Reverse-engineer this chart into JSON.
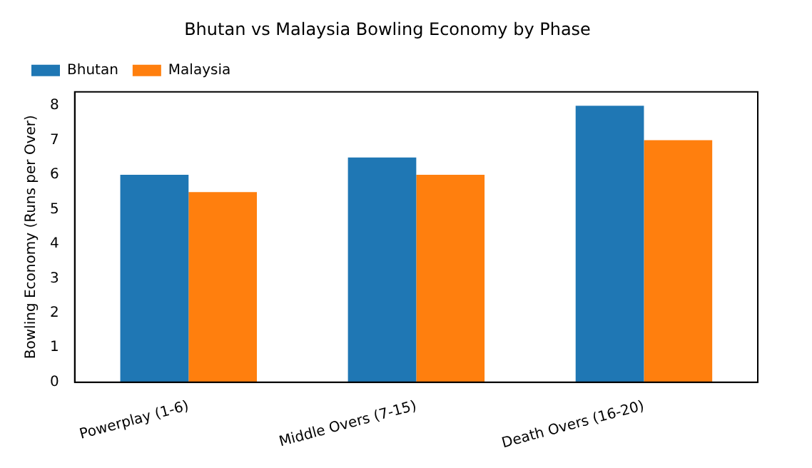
{
  "chart_data": {
    "type": "bar",
    "title": "Bhutan vs Malaysia Bowling Economy by Phase",
    "ylabel": "Bowling Economy (Runs per Over)",
    "categories": [
      "Powerplay (1-6)",
      "Middle Overs (7-15)",
      "Death Overs (16-20)"
    ],
    "series": [
      {
        "name": "Bhutan",
        "color": "#1f77b4",
        "values": [
          6,
          6.5,
          8
        ]
      },
      {
        "name": "Malaysia",
        "color": "#ff7f0e",
        "values": [
          5.5,
          6,
          7
        ]
      }
    ],
    "ylim": [
      0,
      8.4
    ],
    "yticks": [
      0,
      1,
      2,
      3,
      4,
      5,
      6,
      7,
      8
    ],
    "grid": false,
    "legend": "top left"
  }
}
